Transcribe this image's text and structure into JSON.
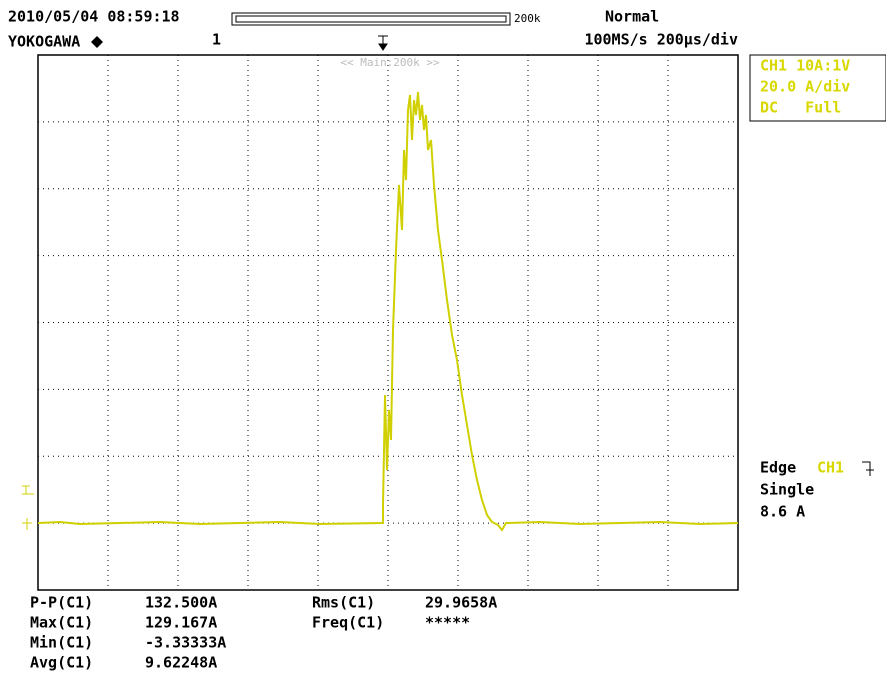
{
  "header": {
    "timestamp": "2010/05/04 08:59:18",
    "brand": "YOKOGAWA",
    "acquisitions": "1",
    "record": "200k",
    "mode": "Normal",
    "timebase": "100MS/s 200µs/div",
    "zoom_label": "<< Main:200k >>"
  },
  "channel": [
    "CH1 10A:1V",
    "20.0 A/div",
    "DC   Full"
  ],
  "trigger": {
    "type": "Edge",
    "source": "CH1",
    "mode": "Single",
    "level": "8.6 A"
  },
  "measurements": [
    {
      "label": "P-P(C1)",
      "value": "132.500A"
    },
    {
      "label": "Max(C1)",
      "value": "129.167A"
    },
    {
      "label": "Min(C1)",
      "value": "-3.33333A"
    },
    {
      "label": "Avg(C1)",
      "value": "9.62248A"
    },
    {
      "label": "Rms(C1)",
      "value": "29.9658A"
    },
    {
      "label": "Freq(C1)",
      "value": "*****"
    }
  ]
}
